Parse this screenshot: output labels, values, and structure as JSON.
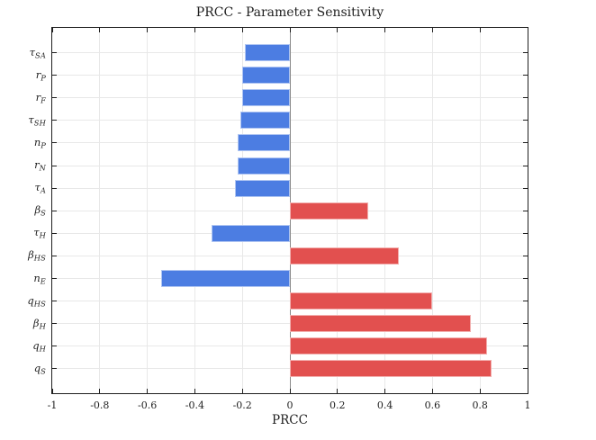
{
  "chart_data": {
    "type": "bar",
    "orientation": "horizontal",
    "title": "PRCC - Parameter Sensitivity",
    "xlabel": "PRCC",
    "xlim": [
      -1,
      1
    ],
    "xticks": [
      -1,
      -0.8,
      -0.6,
      -0.4,
      -0.2,
      0,
      0.2,
      0.4,
      0.6,
      0.8,
      1
    ],
    "xtick_labels": [
      "-1",
      "-0.8",
      "-0.6",
      "-0.4",
      "-0.2",
      "0",
      "0.2",
      "0.4",
      "0.6",
      "0.8",
      "1"
    ],
    "grid": true,
    "legend": "none",
    "categories": [
      {
        "name": "tau_SA",
        "base": "τ",
        "sub": "SA"
      },
      {
        "name": "r_P",
        "base": "r",
        "sub": "P"
      },
      {
        "name": "r_F",
        "base": "r",
        "sub": "F"
      },
      {
        "name": "tau_SH",
        "base": "τ",
        "sub": "SH"
      },
      {
        "name": "n_P",
        "base": "n",
        "sub": "P"
      },
      {
        "name": "r_N",
        "base": "r",
        "sub": "N"
      },
      {
        "name": "tau_A",
        "base": "τ",
        "sub": "A"
      },
      {
        "name": "beta_S",
        "base": "β",
        "sub": "S"
      },
      {
        "name": "tau_H",
        "base": "τ",
        "sub": "H"
      },
      {
        "name": "beta_HS",
        "base": "β",
        "sub": "HS"
      },
      {
        "name": "n_E",
        "base": "n",
        "sub": "E"
      },
      {
        "name": "q_HS",
        "base": "q",
        "sub": "HS"
      },
      {
        "name": "beta_H",
        "base": "β",
        "sub": "H"
      },
      {
        "name": "q_H",
        "base": "q",
        "sub": "H"
      },
      {
        "name": "q_S",
        "base": "q",
        "sub": "S"
      }
    ],
    "values": [
      -0.19,
      -0.2,
      -0.2,
      -0.21,
      -0.22,
      -0.22,
      -0.23,
      0.33,
      -0.33,
      0.46,
      -0.54,
      0.6,
      0.76,
      0.83,
      0.85
    ],
    "colors": {
      "negative_fill": "#4C7DE2",
      "negative_edge": "#AFC5F2",
      "positive_fill": "#E2504F",
      "positive_edge": "#F2AFAE",
      "grid": "#E8E8E8",
      "zero_line": "#8C8C8C",
      "axis": "#1F1F1F",
      "text": "#1F1F1F"
    }
  }
}
